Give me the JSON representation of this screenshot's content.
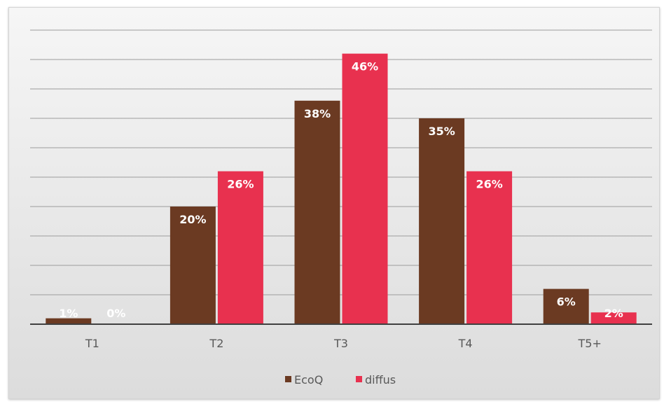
{
  "chart_data": {
    "type": "bar",
    "categories": [
      "T1",
      "T2",
      "T3",
      "T4",
      "T5+"
    ],
    "series": [
      {
        "name": "EcoQ",
        "values": [
          1,
          20,
          38,
          35,
          6
        ],
        "labels": [
          "1%",
          "20%",
          "38%",
          "35%",
          "6%"
        ]
      },
      {
        "name": "diffus",
        "values": [
          0,
          26,
          46,
          26,
          2
        ],
        "labels": [
          "0%",
          "26%",
          "46%",
          "26%",
          "2%"
        ]
      }
    ],
    "colors": [
      "#6b3a22",
      "#e8314f"
    ],
    "ylim": [
      0,
      50
    ],
    "grid": true,
    "legend": "bottom-center",
    "title": "",
    "xlabel": "",
    "ylabel": ""
  }
}
